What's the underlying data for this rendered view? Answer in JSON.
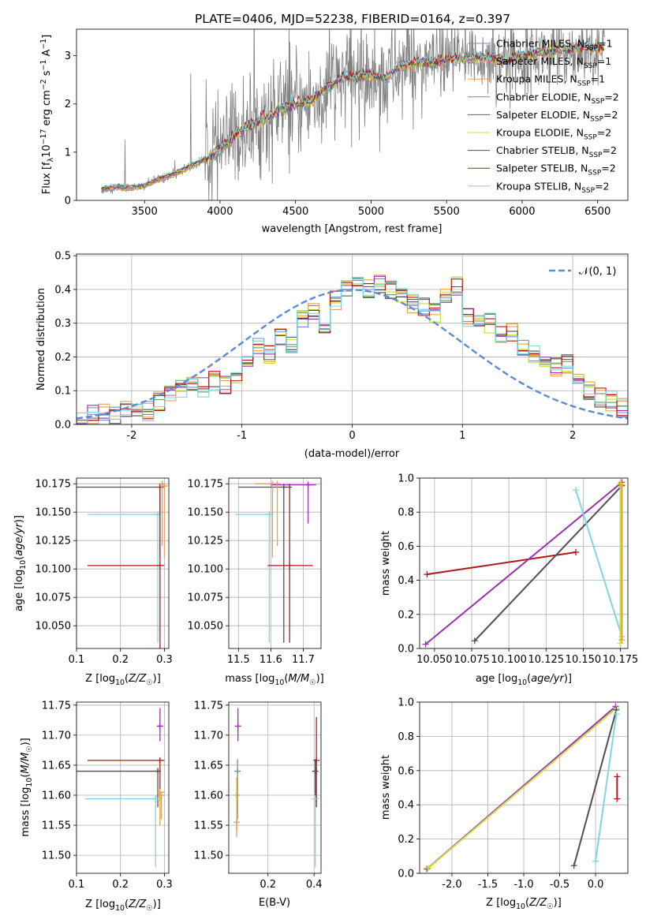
{
  "figure": {
    "title": "PLATE=0406, MJD=52238, FIBERID=0164, z=0.397"
  },
  "colors": {
    "observed": "#808080",
    "chabrier_miles": "#6b8fc9",
    "salpeter_miles": "#e8a060",
    "kroupa_miles": "#d9a441",
    "chabrier_elodie": "#6a9a6a",
    "salpeter_elodie": "#9b30b0",
    "kroupa_elodie": "#c8e040",
    "chabrier_stelib": "#505050",
    "salpeter_stelib": "#b01818",
    "kroupa_stelib": "#7fd6dd",
    "normal": "#5b8bd8"
  },
  "chart_data": [
    {
      "panel": "spectrum",
      "type": "line",
      "title": "PLATE=0406, MJD=52238, FIBERID=0164, z=0.397",
      "xlabel": "wavelength [Angstrom, rest frame]",
      "ylabel": "Flux [f_λ 10^-17 erg cm^-2 s^-1 A^-1]",
      "xlim": [
        3050,
        6700
      ],
      "ylim": [
        0,
        3.55
      ],
      "xticks": [
        3500,
        4000,
        4500,
        5000,
        5500,
        6000,
        6500
      ],
      "yticks": [
        0,
        1,
        2,
        3
      ],
      "legend_placement": "top-right",
      "legend": [
        {
          "label": "Chabrier MILES, N",
          "sub": "SSP",
          "suffix": "=1",
          "color_key": "chabrier_miles"
        },
        {
          "label": "Salpeter MILES, N",
          "sub": "SSP",
          "suffix": "=1",
          "color_key": "salpeter_miles"
        },
        {
          "label": "Kroupa MILES, N",
          "sub": "SSP",
          "suffix": "=1",
          "color_key": "kroupa_miles"
        },
        {
          "label": "Chabrier ELODIE, N",
          "sub": "SSP",
          "suffix": "=2",
          "color_key": "chabrier_elodie"
        },
        {
          "label": "Salpeter ELODIE, N",
          "sub": "SSP",
          "suffix": "=2",
          "color_key": "salpeter_elodie"
        },
        {
          "label": "Kroupa ELODIE, N",
          "sub": "SSP",
          "suffix": "=2",
          "color_key": "kroupa_elodie"
        },
        {
          "label": "Chabrier STELIB, N",
          "sub": "SSP",
          "suffix": "=2",
          "color_key": "chabrier_stelib"
        },
        {
          "label": "Salpeter STELIB, N",
          "sub": "SSP",
          "suffix": "=2",
          "color_key": "salpeter_stelib"
        },
        {
          "label": "Kroupa STELIB, N",
          "sub": "SSP",
          "suffix": "=2",
          "color_key": "kroupa_stelib"
        }
      ],
      "model_continuum": {
        "x": [
          3210,
          3300,
          3400,
          3500,
          3600,
          3700,
          3800,
          3900,
          4000,
          4100,
          4200,
          4300,
          4400,
          4500,
          4600,
          4700,
          4800,
          4900,
          5000,
          5100,
          5200,
          5300,
          5400,
          5500,
          5600,
          5700,
          5800,
          5900,
          6000,
          6100,
          6200,
          6300,
          6400,
          6550
        ],
        "y": [
          0.22,
          0.28,
          0.26,
          0.3,
          0.45,
          0.55,
          0.7,
          0.85,
          1.05,
          1.35,
          1.55,
          1.7,
          1.9,
          2.0,
          2.05,
          2.3,
          2.55,
          2.55,
          2.6,
          2.55,
          2.8,
          2.85,
          2.85,
          2.9,
          2.95,
          2.95,
          2.95,
          2.9,
          3.0,
          3.05,
          3.1,
          3.1,
          3.2,
          3.15
        ]
      },
      "observed_range": [
        3215,
        6550
      ],
      "observed_note": "noisy observed spectrum shown in grey behind the models"
    },
    {
      "panel": "residuals",
      "type": "area",
      "xlabel": "(data-model)/error",
      "ylabel": "Normed distribution",
      "xlim": [
        -2.5,
        2.5
      ],
      "ylim": [
        0,
        0.505
      ],
      "xticks": [
        -2,
        -1,
        0,
        1,
        2
      ],
      "yticks": [
        0.0,
        0.1,
        0.2,
        0.3,
        0.4,
        0.5
      ],
      "grid": true,
      "legend_placement": "top-right",
      "normal_label": "𝒩(0, 1)",
      "bin_edges": [
        -2.5,
        -2.4,
        -2.3,
        -2.2,
        -2.1,
        -2.0,
        -1.9,
        -1.8,
        -1.7,
        -1.6,
        -1.5,
        -1.4,
        -1.3,
        -1.2,
        -1.1,
        -1.0,
        -0.9,
        -0.8,
        -0.7,
        -0.6,
        -0.5,
        -0.4,
        -0.3,
        -0.2,
        -0.1,
        0.0,
        0.1,
        0.2,
        0.3,
        0.4,
        0.5,
        0.6,
        0.7,
        0.8,
        0.9,
        1.0,
        1.1,
        1.2,
        1.3,
        1.4,
        1.5,
        1.6,
        1.7,
        1.8,
        1.9,
        2.0,
        2.1,
        2.2,
        2.3,
        2.4,
        2.5
      ],
      "base_histogram": [
        0.01,
        0.03,
        0.04,
        0.03,
        0.04,
        0.05,
        0.04,
        0.07,
        0.1,
        0.11,
        0.12,
        0.11,
        0.13,
        0.12,
        0.14,
        0.2,
        0.23,
        0.21,
        0.26,
        0.23,
        0.31,
        0.33,
        0.3,
        0.37,
        0.4,
        0.41,
        0.4,
        0.42,
        0.4,
        0.38,
        0.36,
        0.35,
        0.33,
        0.38,
        0.41,
        0.32,
        0.31,
        0.3,
        0.27,
        0.27,
        0.22,
        0.21,
        0.18,
        0.17,
        0.18,
        0.12,
        0.1,
        0.08,
        0.07,
        0.05
      ]
    },
    {
      "panel": "age_vs_Z",
      "type": "scatter",
      "xlabel": "Z [log10(Z/Z☉)]",
      "ylabel": "age [log10(age/yr)]",
      "xlim": [
        0.1,
        0.31
      ],
      "ylim": [
        10.03,
        10.18
      ],
      "xticks": [
        0.1,
        0.2,
        0.3
      ],
      "yticks": [
        10.05,
        10.075,
        10.1,
        10.125,
        10.15,
        10.175
      ],
      "grid": true,
      "points": [
        {
          "color_key": "chabrier_stelib",
          "x": 0.29,
          "y": 10.172,
          "xerr": [
            0.1,
            0.3
          ],
          "yerr": [
            10.11,
            10.174
          ]
        },
        {
          "color_key": "kroupa_stelib",
          "x": 0.285,
          "y": 10.148,
          "xerr": [
            0.125,
            0.29
          ],
          "yerr": [
            10.035,
            10.15
          ]
        },
        {
          "color_key": "salpeter_stelib",
          "x": 0.29,
          "y": 10.103,
          "xerr": [
            0.125,
            0.3
          ],
          "yerr": [
            10.03,
            10.175
          ]
        },
        {
          "color_key": "kroupa_miles",
          "x": 0.295,
          "y": 10.175,
          "xerr": [
            0.29,
            0.3
          ],
          "yerr": [
            10.12,
            10.176
          ]
        },
        {
          "color_key": "salpeter_miles",
          "x": 0.3,
          "y": 10.173,
          "xerr": [
            0.29,
            0.305
          ],
          "yerr": [
            10.11,
            10.175
          ]
        }
      ]
    },
    {
      "panel": "age_vs_mass",
      "type": "scatter",
      "xlabel": "mass [log10(M/M☉)]",
      "ylabel": "",
      "xlim": [
        11.47,
        11.755
      ],
      "ylim": [
        10.03,
        10.18
      ],
      "xticks": [
        11.5,
        11.6,
        11.7
      ],
      "yticks": [
        10.05,
        10.075,
        10.1,
        10.125,
        10.15,
        10.175
      ],
      "grid": true,
      "points": [
        {
          "color_key": "chabrier_stelib",
          "x": 11.64,
          "y": 10.172,
          "xerr": [
            11.5,
            11.665
          ],
          "yerr": [
            10.035,
            10.174
          ]
        },
        {
          "color_key": "kroupa_stelib",
          "x": 11.595,
          "y": 10.148,
          "xerr": [
            11.49,
            11.6
          ],
          "yerr": [
            10.035,
            10.15
          ]
        },
        {
          "color_key": "salpeter_stelib",
          "x": 11.658,
          "y": 10.103,
          "xerr": [
            11.59,
            11.73
          ],
          "yerr": [
            10.035,
            10.175
          ]
        },
        {
          "color_key": "salpeter_elodie",
          "x": 11.715,
          "y": 10.174,
          "xerr": [
            11.6,
            11.74
          ],
          "yerr": [
            10.14,
            10.176
          ]
        },
        {
          "color_key": "kroupa_miles",
          "x": 11.605,
          "y": 10.175,
          "xerr": [
            11.55,
            11.62
          ],
          "yerr": [
            10.11,
            10.176
          ]
        },
        {
          "color_key": "salpeter_miles",
          "x": 11.62,
          "y": 10.175,
          "xerr": [
            11.6,
            11.63
          ],
          "yerr": [
            10.12,
            10.176
          ]
        }
      ]
    },
    {
      "panel": "massweight_vs_age",
      "type": "line",
      "xlabel": "age [log10(age/yr)]",
      "ylabel": "mass weight",
      "xlim": [
        10.04,
        10.18
      ],
      "ylim": [
        0,
        1.0
      ],
      "xticks": [
        10.05,
        10.075,
        10.1,
        10.125,
        10.15,
        10.175
      ],
      "yticks": [
        0.0,
        0.2,
        0.4,
        0.6,
        0.8,
        1.0
      ],
      "grid": true,
      "series": [
        {
          "color_key": "salpeter_stelib",
          "x": [
            10.045,
            10.145
          ],
          "y": [
            0.435,
            0.565
          ]
        },
        {
          "color_key": "salpeter_elodie",
          "x": [
            10.044,
            10.176
          ],
          "y": [
            0.025,
            0.975
          ]
        },
        {
          "color_key": "chabrier_stelib",
          "x": [
            10.077,
            10.176
          ],
          "y": [
            0.045,
            0.955
          ]
        },
        {
          "color_key": "kroupa_stelib",
          "x": [
            10.145,
            10.176
          ],
          "y": [
            0.93,
            0.07
          ]
        },
        {
          "color_key": "kroupa_elodie",
          "x": [
            10.175,
            10.175
          ],
          "y": [
            0.03,
            0.97
          ]
        },
        {
          "color_key": "kroupa_miles",
          "x": [
            10.176,
            10.176
          ],
          "y": [
            0.05,
            0.96
          ]
        }
      ]
    },
    {
      "panel": "mass_vs_Z",
      "type": "scatter",
      "xlabel": "Z [log10(Z/Z☉)]",
      "ylabel": "mass [log10(M/M☉)]",
      "xlim": [
        0.1,
        0.31
      ],
      "ylim": [
        11.47,
        11.755
      ],
      "xticks": [
        0.1,
        0.2,
        0.3
      ],
      "yticks": [
        11.5,
        11.55,
        11.6,
        11.65,
        11.7,
        11.75
      ],
      "grid": true,
      "points": [
        {
          "color_key": "salpeter_stelib",
          "x": 0.29,
          "y": 11.658,
          "xerr": [
            0.125,
            0.3
          ],
          "yerr": [
            11.59,
            11.66
          ]
        },
        {
          "color_key": "chabrier_stelib",
          "x": 0.285,
          "y": 11.64,
          "xerr": [
            0.1,
            0.29
          ],
          "yerr": [
            11.58,
            11.645
          ]
        },
        {
          "color_key": "kroupa_stelib",
          "x": 0.28,
          "y": 11.594,
          "xerr": [
            0.12,
            0.285
          ],
          "yerr": [
            11.48,
            11.6
          ]
        },
        {
          "color_key": "salpeter_elodie",
          "x": 0.29,
          "y": 11.715,
          "xerr": [
            0.285,
            0.295
          ],
          "yerr": [
            11.69,
            11.745
          ]
        },
        {
          "color_key": "kroupa_miles",
          "x": 0.29,
          "y": 11.605,
          "xerr": [
            0.285,
            0.3
          ],
          "yerr": [
            11.55,
            11.61
          ]
        },
        {
          "color_key": "salpeter_miles",
          "x": 0.293,
          "y": 11.6,
          "xerr": [
            0.29,
            0.3
          ],
          "yerr": [
            11.56,
            11.605
          ]
        }
      ]
    },
    {
      "panel": "mass_vs_ebv",
      "type": "scatter",
      "xlabel": "E(B-V)",
      "ylabel": "",
      "xlim": [
        0.03,
        0.43
      ],
      "ylim": [
        11.47,
        11.755
      ],
      "xticks": [
        0.2,
        0.4
      ],
      "yticks": [
        11.5,
        11.55,
        11.6,
        11.65,
        11.7,
        11.75
      ],
      "grid": true,
      "points": [
        {
          "color_key": "salpeter_elodie",
          "x": 0.07,
          "y": 11.715,
          "yerr": [
            11.69,
            11.745
          ]
        },
        {
          "color_key": "chabrier_elodie",
          "x": 0.068,
          "y": 11.64,
          "yerr": [
            11.56,
            11.66
          ]
        },
        {
          "color_key": "kroupa_miles",
          "x": 0.065,
          "y": 11.6,
          "yerr": [
            11.54,
            11.63
          ]
        },
        {
          "color_key": "salpeter_miles",
          "x": 0.064,
          "y": 11.555,
          "yerr": [
            11.53,
            11.56
          ]
        },
        {
          "color_key": "salpeter_stelib",
          "x": 0.41,
          "y": 11.658,
          "yerr": [
            11.58,
            11.73
          ]
        },
        {
          "color_key": "chabrier_stelib",
          "x": 0.405,
          "y": 11.64,
          "yerr": [
            11.6,
            11.66
          ]
        },
        {
          "color_key": "kroupa_stelib",
          "x": 0.405,
          "y": 11.594,
          "yerr": [
            11.48,
            11.6
          ]
        }
      ]
    },
    {
      "panel": "massweight_vs_Z",
      "type": "line",
      "xlabel": "Z [log10(Z/Z☉)]",
      "ylabel": "mass weight",
      "xlim": [
        -2.45,
        0.45
      ],
      "ylim": [
        0,
        1.0
      ],
      "xticks": [
        -2.0,
        -1.5,
        -1.0,
        -0.5,
        0.0
      ],
      "yticks": [
        0.0,
        0.2,
        0.4,
        0.6,
        0.8,
        1.0
      ],
      "grid": true,
      "series": [
        {
          "color_key": "salpeter_elodie",
          "x": [
            -2.35,
            0.28
          ],
          "y": [
            0.025,
            0.975
          ]
        },
        {
          "color_key": "kroupa_elodie",
          "x": [
            -2.33,
            0.29
          ],
          "y": [
            0.03,
            0.965
          ]
        },
        {
          "color_key": "chabrier_stelib",
          "x": [
            -0.3,
            0.29
          ],
          "y": [
            0.045,
            0.955
          ]
        },
        {
          "color_key": "kroupa_stelib",
          "x": [
            0.0,
            0.29
          ],
          "y": [
            0.07,
            0.93
          ]
        },
        {
          "color_key": "salpeter_stelib",
          "x": [
            0.3,
            0.3
          ],
          "y": [
            0.435,
            0.565
          ]
        }
      ]
    }
  ]
}
